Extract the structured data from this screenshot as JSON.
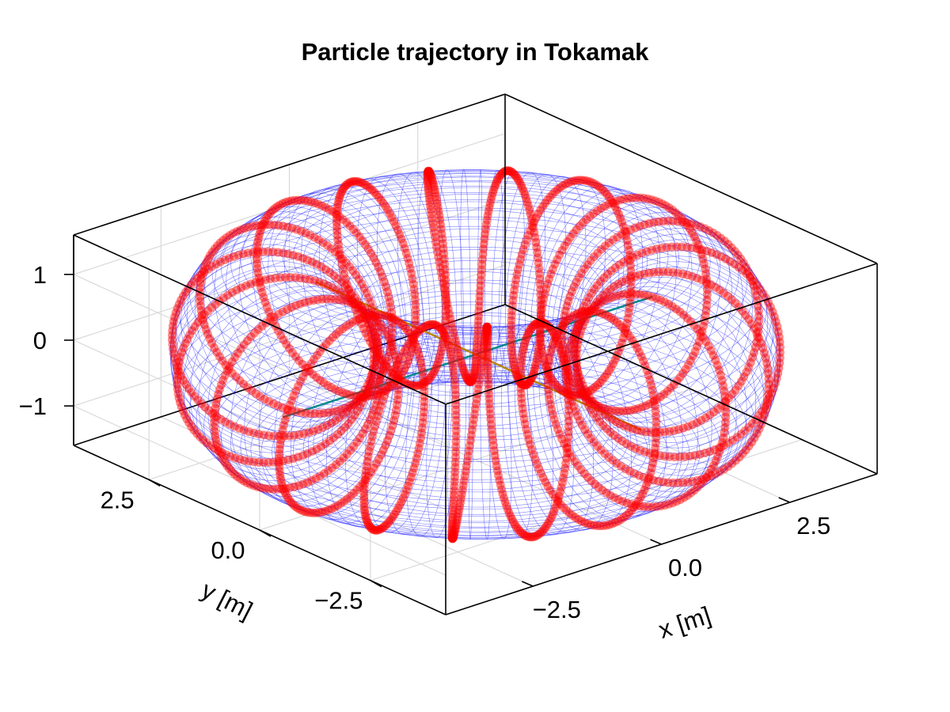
{
  "chart_data": {
    "type": "scatter",
    "title": "Particle trajectory in Tokamak",
    "xlabel": "x [m]",
    "ylabel": "y [m]",
    "zlabel": "",
    "xlim": [
      -4.2,
      4.2
    ],
    "ylim": [
      -4.2,
      4.2
    ],
    "zlim": [
      -1.6,
      1.6
    ],
    "x_ticks": [
      "−2.5",
      "0.0",
      "2.5"
    ],
    "y_ticks": [
      "2.5",
      "0.0",
      "−2.5"
    ],
    "z_ticks": [
      "1",
      "0",
      "−1"
    ],
    "x_tick_values": [
      -2.5,
      0.0,
      2.5
    ],
    "y_tick_values": [
      2.5,
      0.0,
      -2.5
    ],
    "z_tick_values": [
      1,
      0,
      -1
    ],
    "grid": true,
    "torus": {
      "major_radius": 3.0,
      "minor_radius": 1.5,
      "color": "#1a1aff"
    },
    "trajectory": {
      "color": "#ff0000",
      "toroidal_turns": 1,
      "poloidal_turns": 19
    },
    "axis_lines": [
      {
        "color": "#008b8b",
        "direction": "x"
      },
      {
        "color": "#b8860b",
        "direction": "y"
      }
    ]
  }
}
